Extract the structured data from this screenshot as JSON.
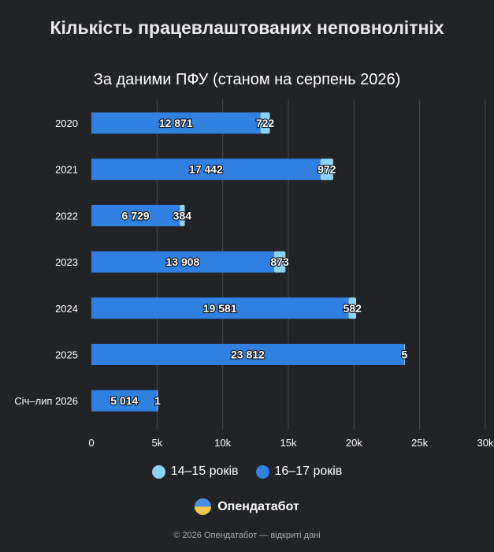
{
  "title": "Кількість працевлаштованих неповнолітніх",
  "subtitle": "За даними ПФУ (станом на серпень 2026)",
  "brand": {
    "name": "Опендатабот",
    "logo_icon": "opendatabot-logo-icon"
  },
  "footer": "© 2026 Опендатабот — відкриті дані",
  "colors": {
    "background": "#222326",
    "series_16_17": "#2f80e1",
    "series_14_15": "#8ed3f6",
    "grid": "#4a4b4f",
    "text": "#ffffff"
  },
  "chart_data": {
    "type": "bar",
    "orientation": "horizontal",
    "stacked": true,
    "categories": [
      "2020",
      "2021",
      "2022",
      "2023",
      "2024",
      "2025",
      "Січ–лип 2026"
    ],
    "series": [
      {
        "name": "16–17 років",
        "values": [
          12871,
          17442,
          6729,
          13908,
          19581,
          23812,
          5014
        ],
        "labels": [
          "12 871",
          "17 442",
          "6 729",
          "13 908",
          "19 581",
          "23 812",
          "5 014"
        ]
      },
      {
        "name": "14–15 років",
        "values": [
          722,
          972,
          384,
          873,
          582,
          5,
          1
        ],
        "labels": [
          "722",
          "972",
          "384",
          "873",
          "582",
          "5",
          "1"
        ]
      }
    ],
    "xlim": [
      0,
      30000
    ],
    "xticks": [
      0,
      5000,
      10000,
      15000,
      20000,
      25000,
      30000
    ],
    "xtick_labels": [
      "0",
      "5k",
      "10k",
      "15k",
      "20k",
      "25k",
      "30k"
    ],
    "grid": true,
    "legend": {
      "placement": "bottom",
      "entries": [
        {
          "label": "14–15 років",
          "color": "#8ed3f6"
        },
        {
          "label": "16–17 років",
          "color": "#2f80e1"
        }
      ]
    }
  }
}
